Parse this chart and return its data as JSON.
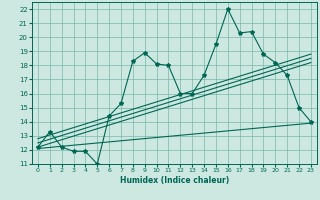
{
  "xlabel": "Humidex (Indice chaleur)",
  "bg_color": "#cce8e0",
  "grid_color": "#7ab8a8",
  "line_color": "#006655",
  "xlim": [
    -0.5,
    23.5
  ],
  "ylim": [
    11,
    22.5
  ],
  "xticks": [
    0,
    1,
    2,
    3,
    4,
    5,
    6,
    7,
    8,
    9,
    10,
    11,
    12,
    13,
    14,
    15,
    16,
    17,
    18,
    19,
    20,
    21,
    22,
    23
  ],
  "yticks": [
    11,
    12,
    13,
    14,
    15,
    16,
    17,
    18,
    19,
    20,
    21,
    22
  ],
  "main_x": [
    0,
    1,
    2,
    3,
    4,
    5,
    6,
    7,
    8,
    9,
    10,
    11,
    12,
    13,
    14,
    15,
    16,
    17,
    18,
    19,
    20,
    21,
    22,
    23
  ],
  "main_y": [
    12.2,
    13.3,
    12.2,
    11.9,
    11.9,
    11.0,
    14.4,
    15.3,
    18.3,
    18.9,
    18.1,
    18.0,
    16.0,
    16.0,
    17.3,
    19.5,
    22.0,
    20.3,
    20.4,
    18.8,
    18.2,
    17.3,
    15.0,
    14.0
  ],
  "reg_lines": [
    {
      "x": [
        0,
        23
      ],
      "y": [
        12.2,
        18.2
      ]
    },
    {
      "x": [
        0,
        23
      ],
      "y": [
        12.5,
        18.5
      ]
    },
    {
      "x": [
        0,
        23
      ],
      "y": [
        12.8,
        18.8
      ]
    },
    {
      "x": [
        0,
        23
      ],
      "y": [
        12.1,
        13.9
      ]
    }
  ]
}
